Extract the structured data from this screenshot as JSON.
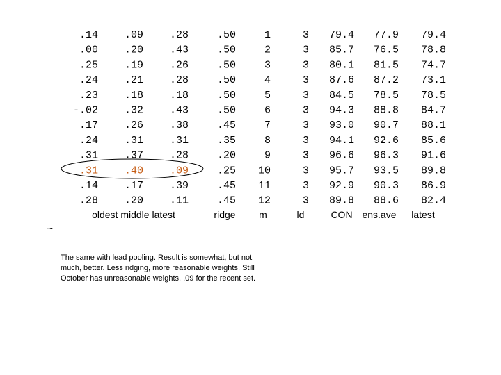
{
  "table": {
    "rows": [
      [
        ".14",
        ".09",
        ".28",
        ".50",
        "1",
        "3",
        "79.4",
        "77.9",
        "79.4"
      ],
      [
        ".00",
        ".20",
        ".43",
        ".50",
        "2",
        "3",
        "85.7",
        "76.5",
        "78.8"
      ],
      [
        ".25",
        ".19",
        ".26",
        ".50",
        "3",
        "3",
        "80.1",
        "81.5",
        "74.7"
      ],
      [
        ".24",
        ".21",
        ".28",
        ".50",
        "4",
        "3",
        "87.6",
        "87.2",
        "73.1"
      ],
      [
        ".23",
        ".18",
        ".18",
        ".50",
        "5",
        "3",
        "84.5",
        "78.5",
        "78.5"
      ],
      [
        "-.02",
        ".32",
        ".43",
        ".50",
        "6",
        "3",
        "94.3",
        "88.8",
        "84.7"
      ],
      [
        ".17",
        ".26",
        ".38",
        ".45",
        "7",
        "3",
        "93.0",
        "90.7",
        "88.1"
      ],
      [
        ".24",
        ".31",
        ".31",
        ".35",
        "8",
        "3",
        "94.1",
        "92.6",
        "85.6"
      ],
      [
        ".31",
        ".37",
        ".28",
        ".20",
        "9",
        "3",
        "96.6",
        "96.3",
        "91.6"
      ],
      [
        ".31",
        ".40",
        ".09",
        ".25",
        "10",
        "3",
        "95.7",
        "93.5",
        "89.8"
      ],
      [
        ".14",
        ".17",
        ".39",
        ".45",
        "11",
        "3",
        "92.9",
        "90.3",
        "86.9"
      ],
      [
        ".28",
        ".20",
        ".11",
        ".45",
        "12",
        "3",
        "89.8",
        "88.6",
        "82.4"
      ]
    ],
    "footer_labels": [
      "oldest middle latest",
      "ridge",
      "m",
      "ld",
      "CON",
      "ens.ave",
      "latest"
    ]
  },
  "mark": "~",
  "caption": [
    "The same with lead pooling. Result is somewhat, but not",
    "much, better. Less ridging, more reasonable weights. Still",
    "October has unreasonable weights, .09 for the recent set."
  ]
}
